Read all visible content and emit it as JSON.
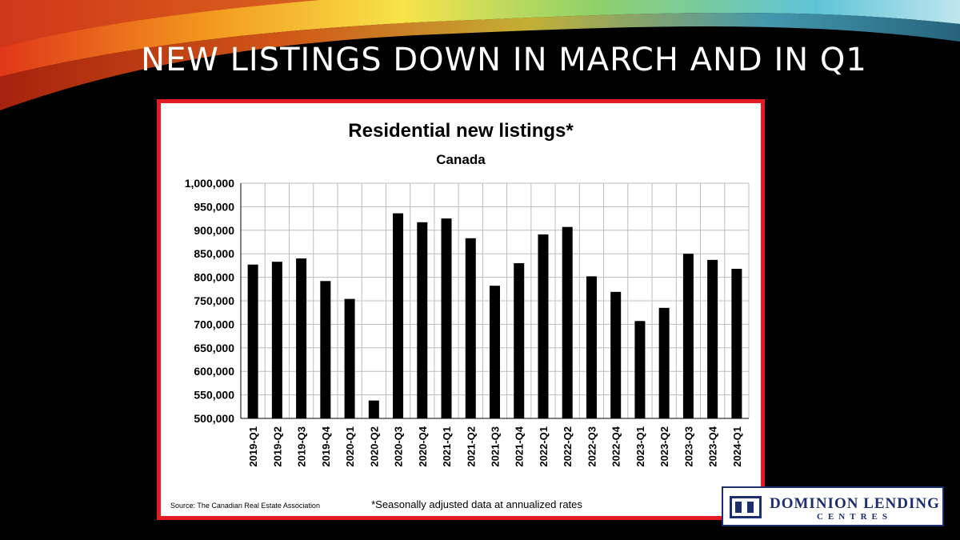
{
  "slide": {
    "title": "NEW LISTINGS DOWN IN MARCH AND IN Q1",
    "colors": {
      "background": "#000000",
      "frame": "#e31b23",
      "bar": "#000000"
    }
  },
  "logo": {
    "name": "DOMINION LENDING",
    "sub": "CENTRES"
  },
  "chart_data": {
    "type": "bar",
    "title": "Residential new listings*",
    "subtitle": "Canada",
    "xlabel": "",
    "ylabel": "",
    "categories": [
      "2019-Q1",
      "2019-Q2",
      "2019-Q3",
      "2019-Q4",
      "2020-Q1",
      "2020-Q2",
      "2020-Q3",
      "2020-Q4",
      "2021-Q1",
      "2021-Q2",
      "2021-Q3",
      "2021-Q4",
      "2022-Q1",
      "2022-Q2",
      "2022-Q3",
      "2022-Q4",
      "2023-Q1",
      "2023-Q2",
      "2023-Q3",
      "2023-Q4",
      "2024-Q1"
    ],
    "values": [
      827000,
      833000,
      840000,
      792000,
      754000,
      538000,
      936000,
      917000,
      925000,
      883000,
      782000,
      830000,
      891000,
      907000,
      802000,
      769000,
      707000,
      735000,
      850000,
      837000,
      818000
    ],
    "ylim": [
      500000,
      1000000
    ],
    "yticks": [
      "500,000",
      "550,000",
      "600,000",
      "650,000",
      "700,000",
      "750,000",
      "800,000",
      "850,000",
      "900,000",
      "950,000",
      "1,000,000"
    ],
    "grid": true,
    "source": "Source: The Canadian Real Estate Association",
    "note": "*Seasonally adjusted data at annualized rates"
  }
}
